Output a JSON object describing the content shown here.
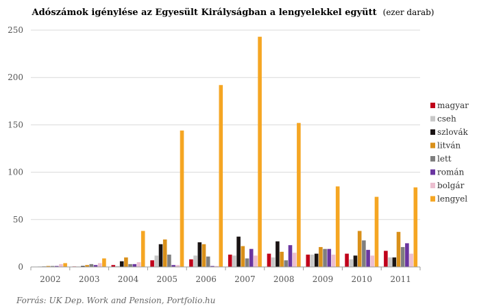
{
  "chart_data": {
    "type": "bar",
    "title": "Adószámok igénylése az Egyesült Királyságban a lengyelekkel együtt",
    "subtitle": "(ezer darab)",
    "source": "Forrás: UK Dep. Work and Pension, Portfolio.hu",
    "categories": [
      "2002",
      "2003",
      "2004",
      "2005",
      "2006",
      "2007",
      "2008",
      "2009",
      "2010",
      "2011"
    ],
    "ylim": [
      0,
      250
    ],
    "yticks": [
      0,
      50,
      100,
      150,
      200,
      250
    ],
    "grid": true,
    "legend_position": "right",
    "series": [
      {
        "name": "magyar",
        "color": "#c0001a",
        "values": [
          0.3,
          0.5,
          2,
          7,
          8,
          13,
          14,
          13,
          14,
          17
        ]
      },
      {
        "name": "cseh",
        "color": "#c8c8c8",
        "values": [
          0.5,
          0.5,
          1,
          12,
          12,
          12,
          10,
          13,
          8,
          10
        ]
      },
      {
        "name": "szlovák",
        "color": "#1a1414",
        "values": [
          0.5,
          1,
          6,
          24,
          26,
          32,
          27,
          14,
          12,
          10
        ]
      },
      {
        "name": "litván",
        "color": "#d9901a",
        "values": [
          1,
          2,
          10,
          29,
          24,
          22,
          16,
          21,
          38,
          37
        ]
      },
      {
        "name": "lett",
        "color": "#7f7f7f",
        "values": [
          1,
          3,
          3,
          13,
          11,
          9,
          7,
          19,
          28,
          21
        ]
      },
      {
        "name": "román",
        "color": "#6a35a0",
        "values": [
          1,
          2,
          3,
          2,
          1,
          19,
          23,
          19,
          18,
          25
        ]
      },
      {
        "name": "bolgár",
        "color": "#ecbfd0",
        "values": [
          3,
          4,
          5,
          2,
          1,
          12,
          15,
          13,
          12,
          14
        ]
      },
      {
        "name": "lengyel",
        "color": "#f5a623",
        "values": [
          4,
          9,
          38,
          144,
          192,
          243,
          152,
          85,
          74,
          84
        ]
      }
    ]
  }
}
